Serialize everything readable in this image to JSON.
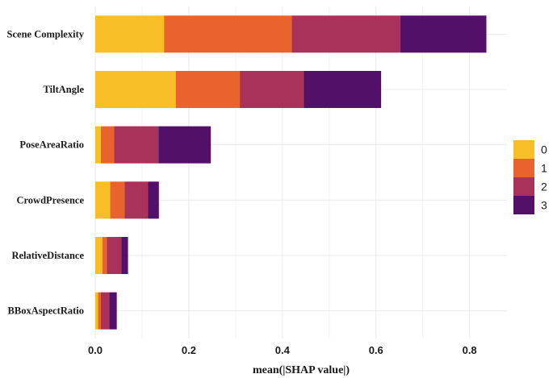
{
  "chart_data": {
    "type": "bar",
    "orientation": "horizontal",
    "stacked": true,
    "title": "",
    "xlabel": "mean(|SHAP value|)",
    "ylabel": "",
    "xlim": [
      0,
      0.88
    ],
    "xticks": [
      "0.0",
      "0.2",
      "0.4",
      "0.6",
      "0.8"
    ],
    "xtick_values": [
      0,
      0.2,
      0.4,
      0.6,
      0.8
    ],
    "grid": true,
    "legend_position": "right",
    "categories": [
      "Scene Complexity",
      "TiltAngle",
      "PoseAreaRatio",
      "CrowdPresence",
      "RelativeDistance",
      "BBoxAspectRatio"
    ],
    "series": [
      {
        "name": "0",
        "color": "#F7BE27",
        "values": [
          0.147,
          0.172,
          0.012,
          0.032,
          0.015,
          0.006
        ]
      },
      {
        "name": "1",
        "color": "#E8632D",
        "values": [
          0.273,
          0.137,
          0.028,
          0.031,
          0.01,
          0.006
        ]
      },
      {
        "name": "2",
        "color": "#A8325A",
        "values": [
          0.232,
          0.137,
          0.095,
          0.05,
          0.031,
          0.018
        ]
      },
      {
        "name": "3",
        "color": "#521068",
        "values": [
          0.184,
          0.165,
          0.112,
          0.023,
          0.014,
          0.016
        ]
      }
    ]
  }
}
